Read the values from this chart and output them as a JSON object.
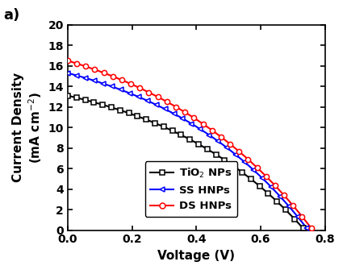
{
  "title": "a)",
  "xlabel": "Voltage (V)",
  "ylabel": "Current Density\n(mA cm$^{-2}$)",
  "xlim": [
    0.0,
    0.8
  ],
  "ylim": [
    0,
    20
  ],
  "xticks": [
    0.0,
    0.2,
    0.4,
    0.6,
    0.8
  ],
  "yticks": [
    0,
    2,
    4,
    6,
    8,
    10,
    12,
    14,
    16,
    18,
    20
  ],
  "series": [
    {
      "label": "TiO$_2$ NPs",
      "color": "black",
      "marker": "s",
      "Jsc": 13.1,
      "Voc": 0.737,
      "n": 18.0
    },
    {
      "label": "SS HNPs",
      "color": "blue",
      "marker": "<",
      "Jsc": 15.3,
      "Voc": 0.748,
      "n": 18.0
    },
    {
      "label": "DS HNPs",
      "color": "red",
      "marker": "o",
      "Jsc": 16.5,
      "Voc": 0.762,
      "n": 20.0
    }
  ],
  "n_markers": 28,
  "background_color": "#ffffff"
}
